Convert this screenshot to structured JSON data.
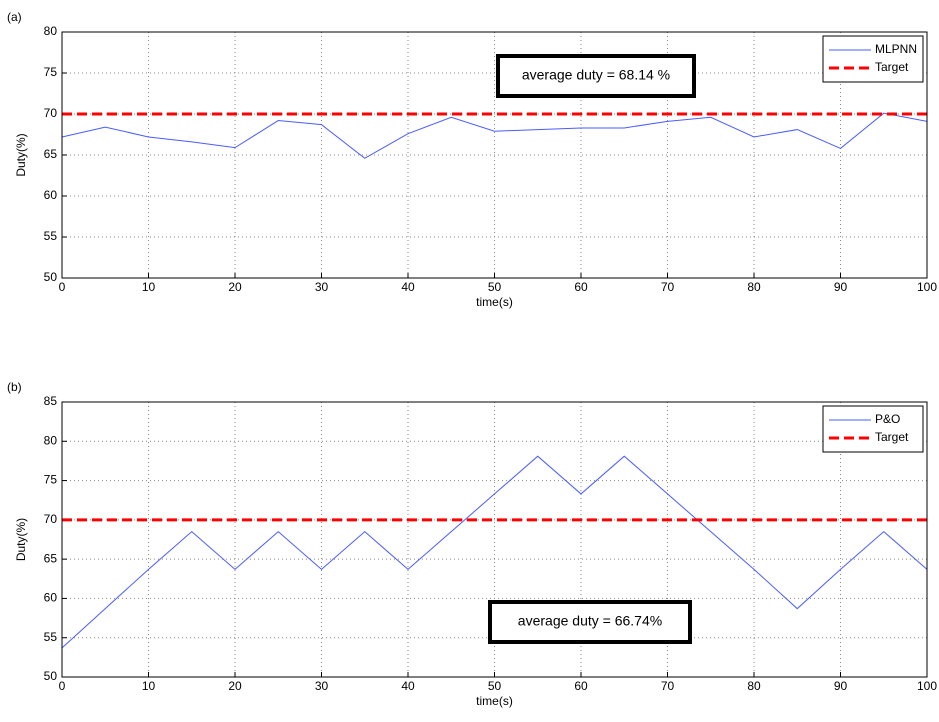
{
  "chart_data": [
    {
      "type": "line",
      "panel_label": "(a)",
      "xlabel": "time(s)",
      "ylabel": "Duty(%)",
      "annotation": "average duty = 68.14 %",
      "xlim": [
        0,
        100
      ],
      "xticks": [
        0,
        10,
        20,
        30,
        40,
        50,
        60,
        70,
        80,
        90,
        100
      ],
      "ylim": [
        50,
        80
      ],
      "yticks": [
        50,
        55,
        60,
        65,
        70,
        75,
        80
      ],
      "grid": true,
      "legend": "upper right",
      "series": [
        {
          "name": "MLPNN",
          "color": "#4a5cff",
          "dashed": false,
          "x": [
            0,
            5,
            10,
            15,
            20,
            25,
            30,
            35,
            40,
            45,
            50,
            55,
            60,
            65,
            70,
            75,
            80,
            85,
            90,
            95,
            100
          ],
          "values": [
            67.2,
            68.4,
            67.2,
            66.6,
            65.9,
            69.2,
            68.7,
            64.6,
            67.6,
            69.6,
            67.9,
            68.1,
            68.3,
            68.3,
            69.1,
            69.6,
            67.2,
            68.1,
            65.8,
            70.1,
            69.1
          ]
        },
        {
          "name": "Target",
          "color": "#ff0000",
          "dashed": true,
          "x": [
            0,
            100
          ],
          "values": [
            70,
            70
          ]
        }
      ]
    },
    {
      "type": "line",
      "panel_label": "(b)",
      "xlabel": "time(s)",
      "ylabel": "Duty(%)",
      "annotation": "average duty = 66.74%",
      "xlim": [
        0,
        100
      ],
      "xticks": [
        0,
        10,
        20,
        30,
        40,
        50,
        60,
        70,
        80,
        90,
        100
      ],
      "ylim": [
        50,
        85
      ],
      "yticks": [
        50,
        55,
        60,
        65,
        70,
        75,
        80,
        85
      ],
      "grid": true,
      "legend": "upper right",
      "series": [
        {
          "name": "P&O",
          "color": "#4a5cff",
          "dashed": false,
          "x": [
            0,
            5,
            10,
            15,
            20,
            25,
            30,
            35,
            40,
            45,
            50,
            55,
            60,
            65,
            70,
            75,
            80,
            85,
            90,
            95,
            100
          ],
          "values": [
            53.7,
            58.7,
            63.7,
            68.5,
            63.7,
            68.5,
            63.7,
            68.5,
            63.7,
            68.5,
            73.3,
            78.1,
            73.3,
            78.1,
            73.3,
            68.5,
            63.7,
            58.7,
            63.7,
            68.5,
            63.7
          ]
        },
        {
          "name": "Target",
          "color": "#ff0000",
          "dashed": true,
          "x": [
            0,
            100
          ],
          "values": [
            70,
            70
          ]
        }
      ]
    }
  ]
}
